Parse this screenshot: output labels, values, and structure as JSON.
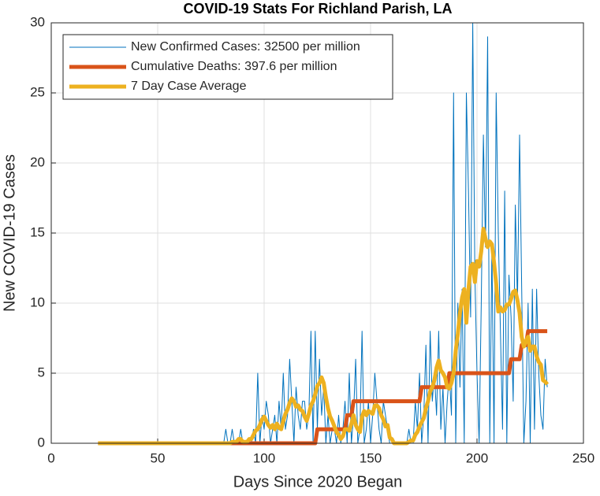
{
  "chart_data": {
    "type": "line",
    "title": "COVID-19 Stats For Richland Parish, LA",
    "x_label": "Days Since 2020 Began",
    "y_label": "New COVID-19 Cases",
    "xlim": [
      0,
      250
    ],
    "xticks": [
      0,
      50,
      100,
      150,
      200,
      250
    ],
    "ylim": [
      0,
      30
    ],
    "yticks": [
      0,
      5,
      10,
      15,
      20,
      25,
      30
    ],
    "grid": true,
    "legend": "upper left",
    "x": [
      22,
      23,
      24,
      25,
      26,
      27,
      28,
      29,
      30,
      31,
      32,
      33,
      34,
      35,
      36,
      37,
      38,
      39,
      40,
      41,
      42,
      43,
      44,
      45,
      46,
      47,
      48,
      49,
      50,
      51,
      52,
      53,
      54,
      55,
      56,
      57,
      58,
      59,
      60,
      61,
      62,
      63,
      64,
      65,
      66,
      67,
      68,
      69,
      70,
      71,
      72,
      73,
      74,
      75,
      76,
      77,
      78,
      79,
      80,
      81,
      82,
      83,
      84,
      85,
      86,
      87,
      88,
      89,
      90,
      91,
      92,
      93,
      94,
      95,
      96,
      97,
      98,
      99,
      100,
      101,
      102,
      103,
      104,
      105,
      106,
      107,
      108,
      109,
      110,
      111,
      112,
      113,
      114,
      115,
      116,
      117,
      118,
      119,
      120,
      121,
      122,
      123,
      124,
      125,
      126,
      127,
      128,
      129,
      130,
      131,
      132,
      133,
      134,
      135,
      136,
      137,
      138,
      139,
      140,
      141,
      142,
      143,
      144,
      145,
      146,
      147,
      148,
      149,
      150,
      151,
      152,
      153,
      154,
      155,
      156,
      157,
      158,
      159,
      160,
      161,
      162,
      163,
      164,
      165,
      166,
      167,
      168,
      169,
      170,
      171,
      172,
      173,
      174,
      175,
      176,
      177,
      178,
      179,
      180,
      181,
      182,
      183,
      184,
      185,
      186,
      187,
      188,
      189,
      190,
      191,
      192,
      193,
      194,
      195,
      196,
      197,
      198,
      199,
      200,
      201,
      202,
      203,
      204,
      205,
      206,
      207,
      208,
      209,
      210,
      211,
      212,
      213,
      214,
      215,
      216,
      217,
      218,
      219,
      220,
      221,
      222,
      223,
      224,
      225,
      226,
      227,
      228,
      229,
      230,
      231,
      232,
      233
    ],
    "series": [
      {
        "name": "New Confirmed Cases: 32500 per million",
        "color": "#0072BD",
        "values": [
          0,
          0,
          0,
          0,
          0,
          0,
          0,
          0,
          0,
          0,
          0,
          0,
          0,
          0,
          0,
          0,
          0,
          0,
          0,
          0,
          0,
          0,
          0,
          0,
          0,
          0,
          0,
          0,
          0,
          0,
          0,
          0,
          0,
          0,
          0,
          0,
          0,
          0,
          0,
          0,
          0,
          0,
          0,
          0,
          0,
          0,
          0,
          0,
          0,
          0,
          0,
          0,
          0,
          0,
          0,
          0,
          0,
          0,
          0,
          0,
          1,
          0,
          0,
          1,
          0,
          0,
          0,
          1,
          0,
          0,
          0,
          0,
          0,
          1,
          0,
          5,
          0,
          2,
          1,
          3,
          2,
          0,
          1,
          2,
          0,
          3,
          1,
          5,
          1,
          2,
          6,
          3,
          0,
          4,
          2,
          1,
          3,
          3,
          1,
          2,
          8,
          0,
          8,
          1,
          6,
          2,
          4,
          0,
          2,
          0,
          1,
          1,
          0,
          2,
          0,
          1,
          3,
          0,
          5,
          0,
          2,
          6,
          0,
          1,
          8,
          0,
          1,
          3,
          0,
          2,
          5,
          3,
          1,
          0,
          3,
          2,
          1,
          0,
          0,
          0,
          0,
          0,
          0,
          0,
          0,
          0,
          1,
          0,
          0,
          3,
          1,
          5,
          0,
          2,
          7,
          0,
          8,
          3,
          5,
          2,
          8,
          1,
          4,
          0,
          3,
          5,
          2,
          25,
          0,
          10,
          4,
          11,
          0,
          25,
          18,
          9,
          30,
          12,
          5,
          0,
          10,
          22,
          14,
          29,
          0,
          14,
          0,
          25,
          15,
          8,
          1,
          18,
          0,
          12,
          9,
          3,
          17,
          10,
          22,
          11,
          0,
          3,
          10,
          0,
          11,
          1,
          11,
          5,
          2,
          1,
          6,
          4
        ]
      },
      {
        "name": "Cumulative Deaths: 397.6 per million",
        "color": "#D95319",
        "values": [
          0,
          0,
          0,
          0,
          0,
          0,
          0,
          0,
          0,
          0,
          0,
          0,
          0,
          0,
          0,
          0,
          0,
          0,
          0,
          0,
          0,
          0,
          0,
          0,
          0,
          0,
          0,
          0,
          0,
          0,
          0,
          0,
          0,
          0,
          0,
          0,
          0,
          0,
          0,
          0,
          0,
          0,
          0,
          0,
          0,
          0,
          0,
          0,
          0,
          0,
          0,
          0,
          0,
          0,
          0,
          0,
          0,
          0,
          0,
          0,
          0,
          0,
          0,
          0,
          0,
          0,
          0,
          0,
          0,
          0,
          0,
          0,
          0,
          0,
          0,
          0,
          0,
          0,
          0,
          0,
          0,
          0,
          0,
          0,
          0,
          0,
          0,
          0,
          0,
          0,
          0,
          0,
          0,
          0,
          0,
          0,
          0,
          0,
          0,
          0,
          0,
          0,
          0,
          1,
          1,
          1,
          1,
          1,
          1,
          1,
          1,
          1,
          1,
          1,
          1,
          1,
          1,
          2,
          2,
          2,
          3,
          3,
          3,
          3,
          3,
          3,
          3,
          3,
          3,
          3,
          3,
          3,
          3,
          3,
          3,
          3,
          3,
          3,
          3,
          3,
          3,
          3,
          3,
          3,
          3,
          3,
          3,
          3,
          3,
          3,
          3,
          3,
          4,
          4,
          4,
          4,
          4,
          4,
          4,
          4,
          4,
          4,
          4,
          4,
          4,
          5,
          5,
          5,
          5,
          5,
          5,
          5,
          5,
          5,
          5,
          5,
          5,
          5,
          5,
          5,
          5,
          5,
          5,
          5,
          5,
          5,
          5,
          5,
          5,
          5,
          5,
          5,
          5,
          5,
          6,
          6,
          6,
          6,
          6,
          7,
          7,
          7,
          8,
          8,
          8,
          8,
          8,
          8,
          8,
          8,
          8,
          8
        ]
      },
      {
        "name": "7 Day Case Average",
        "color": "#EDB120",
        "values": [
          0,
          0,
          0,
          0,
          0,
          0,
          0,
          0,
          0,
          0,
          0,
          0,
          0,
          0,
          0,
          0,
          0,
          0,
          0,
          0,
          0,
          0,
          0,
          0,
          0,
          0,
          0,
          0,
          0,
          0,
          0,
          0,
          0,
          0,
          0,
          0,
          0,
          0,
          0,
          0,
          0,
          0,
          0,
          0,
          0,
          0,
          0,
          0,
          0,
          0,
          0,
          0,
          0,
          0,
          0,
          0,
          0,
          0,
          0,
          0,
          0,
          0,
          0,
          0.1,
          0.1,
          0.1,
          0.3,
          0.3,
          0.1,
          0.1,
          0.1,
          0.3,
          0.3,
          0.6,
          0.9,
          1.0,
          1.3,
          1.7,
          1.9,
          1.6,
          1.3,
          1.1,
          1.3,
          1.0,
          1.4,
          1.1,
          1.0,
          1.6,
          2.1,
          2.4,
          2.9,
          3.2,
          3.0,
          2.6,
          2.7,
          2.4,
          2.3,
          1.9,
          1.6,
          2.1,
          2.7,
          3.0,
          3.5,
          4.1,
          4.3,
          4.7,
          4.3,
          3.3,
          2.5,
          1.9,
          1.6,
          1.2,
          0.8,
          0.6,
          0.3,
          0.5,
          1.0,
          1.0,
          0.9,
          1.4,
          2.0,
          1.3,
          1.0,
          0.8,
          1.9,
          2.3,
          2.0,
          2.3,
          2.2,
          2.1,
          2.7,
          2.7,
          2.5,
          2.0,
          1.7,
          1.2,
          1.3,
          0.4,
          0.3,
          0,
          0,
          0,
          0,
          0,
          0,
          0,
          0.1,
          0.2,
          0.2,
          0.6,
          0.8,
          1.2,
          1.5,
          1.8,
          2.5,
          3.0,
          3.7,
          4.0,
          4.5,
          5.4,
          5.9,
          5.2,
          5.0,
          4.7,
          4.0,
          3.9,
          4.3,
          5.0,
          6.6,
          7.8,
          9.3,
          10.4,
          11.0,
          8.6,
          11.0,
          12.6,
          12.8,
          11.5,
          13.0,
          12.6,
          13.7,
          15.3,
          14.6,
          14.0,
          14.4,
          14.2,
          12.9,
          11.4,
          9.4,
          9.7,
          9.4,
          9.5,
          9.9,
          9.9,
          10.3,
          10.8,
          10.9,
          10.2,
          9.3,
          7.6,
          6.9,
          7.3,
          7.6,
          6.6,
          6.9,
          6.9,
          6.2,
          5.8,
          5.6,
          4.5,
          4.4,
          4.2
        ]
      }
    ]
  }
}
